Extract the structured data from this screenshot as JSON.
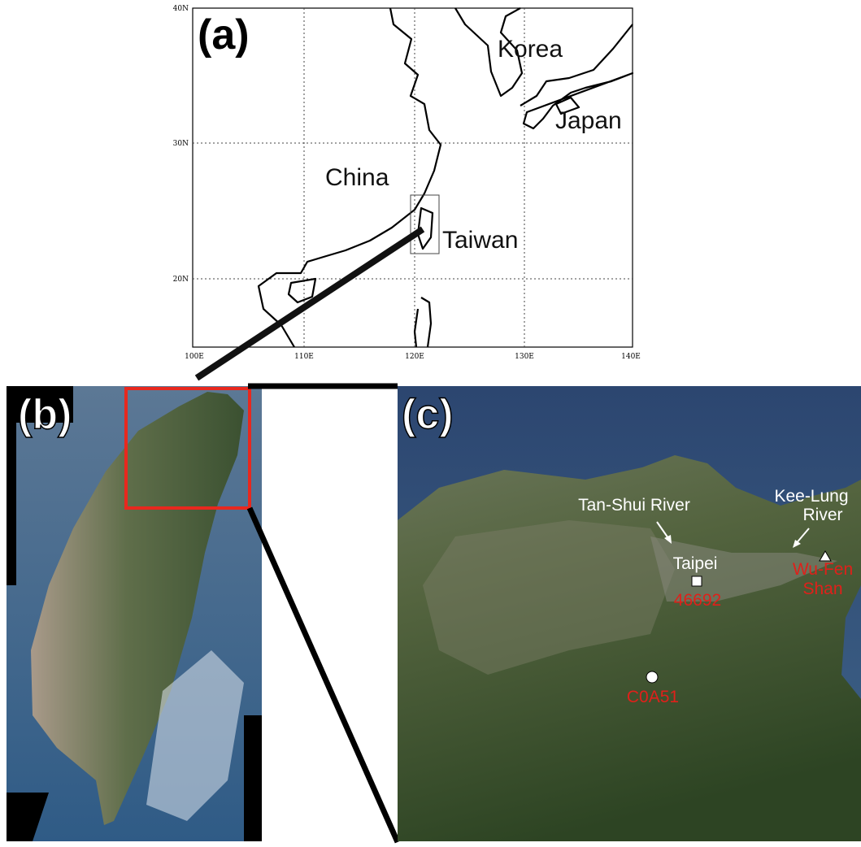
{
  "panels": [
    {
      "label": "(a)",
      "lat_labels": [
        "40N",
        "30N",
        "20N"
      ],
      "lon_labels": [
        "100E",
        "110E",
        "120E",
        "130E",
        "140E"
      ],
      "places": [
        "Korea",
        "Japan",
        "China",
        "Taiwan"
      ]
    },
    {
      "label": "(b)"
    },
    {
      "label": "(c)",
      "rivers": [
        {
          "lines": [
            "Tan-Shui River"
          ]
        },
        {
          "lines": [
            "Kee-Lung",
            "River"
          ]
        }
      ],
      "city": "Taipei",
      "stations": [
        {
          "lines": [
            "46692"
          ]
        },
        {
          "lines": [
            "C0A51"
          ]
        },
        {
          "lines": [
            "Wu-Fen",
            "Shan"
          ]
        }
      ]
    }
  ]
}
